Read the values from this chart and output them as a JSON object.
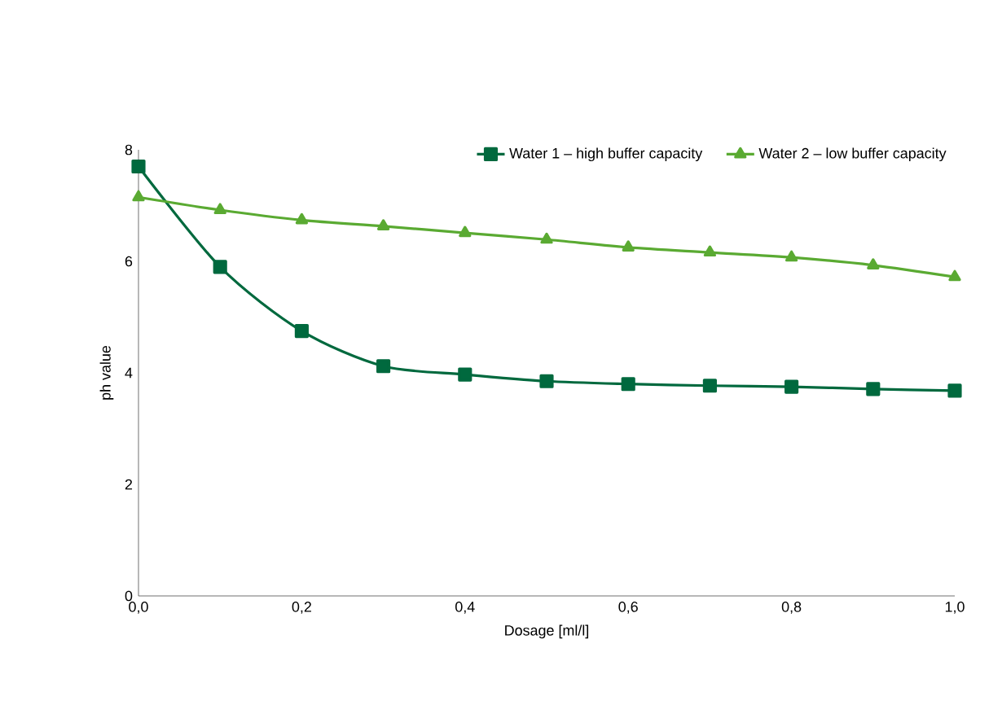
{
  "chart_data": {
    "type": "line",
    "xlabel": "Dosage [ml/l]",
    "ylabel": "ph value",
    "x": [
      0,
      0.1,
      0.2,
      0.3,
      0.4,
      0.5,
      0.6,
      0.7,
      0.8,
      0.9,
      1.0
    ],
    "series": [
      {
        "name": "Water 1 – high buffer capacity",
        "color": "#00693e",
        "marker": "square",
        "values": [
          7.7,
          5.9,
          4.75,
          4.12,
          3.97,
          3.85,
          3.8,
          3.77,
          3.75,
          3.71,
          3.68
        ]
      },
      {
        "name": "Water 2 – low buffer capacity",
        "color": "#5aaa32",
        "marker": "triangle",
        "values": [
          7.15,
          6.92,
          6.74,
          6.63,
          6.51,
          6.39,
          6.25,
          6.16,
          6.07,
          5.93,
          5.72
        ]
      }
    ],
    "xlim": [
      0,
      1.0
    ],
    "ylim": [
      0,
      8
    ],
    "xticks": [
      {
        "value": 0,
        "label": "0,0"
      },
      {
        "value": 0.2,
        "label": "0,2"
      },
      {
        "value": 0.4,
        "label": "0,4"
      },
      {
        "value": 0.6,
        "label": "0,6"
      },
      {
        "value": 0.8,
        "label": "0,8"
      },
      {
        "value": 1.0,
        "label": "1,0"
      }
    ],
    "yticks": [
      0,
      2,
      4,
      6,
      8
    ],
    "grid": false,
    "legend": "top right",
    "line_style": "solid"
  }
}
